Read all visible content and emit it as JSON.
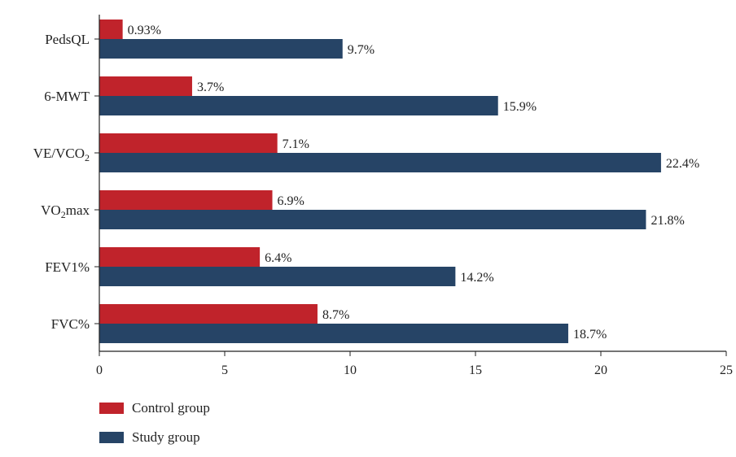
{
  "chart_data": {
    "type": "bar",
    "orientation": "horizontal",
    "categories": [
      "PedsQL",
      "6-MWT",
      "VE/VCO2",
      "VO2max",
      "FEV1%",
      "FVC%"
    ],
    "series": [
      {
        "name": "Control group",
        "color": "#c0232b",
        "values": [
          0.93,
          3.7,
          7.1,
          6.9,
          6.4,
          8.7
        ],
        "labels": [
          "0.93%",
          "3.7%",
          "7.1%",
          "6.9%",
          "6.4%",
          "8.7%"
        ]
      },
      {
        "name": "Study group",
        "color": "#264466",
        "values": [
          9.7,
          15.9,
          22.4,
          21.8,
          14.2,
          18.7
        ],
        "labels": [
          "9.7%",
          "15.9%",
          "22.4%",
          "21.8%",
          "14.2%",
          "18.7%"
        ]
      }
    ],
    "xlim": [
      0,
      25
    ],
    "xticks": [
      "0",
      "5",
      "10",
      "15",
      "20",
      "25"
    ],
    "xlabel": "",
    "ylabel": "",
    "title": "",
    "grid": false,
    "legend_position": "bottom-left"
  }
}
